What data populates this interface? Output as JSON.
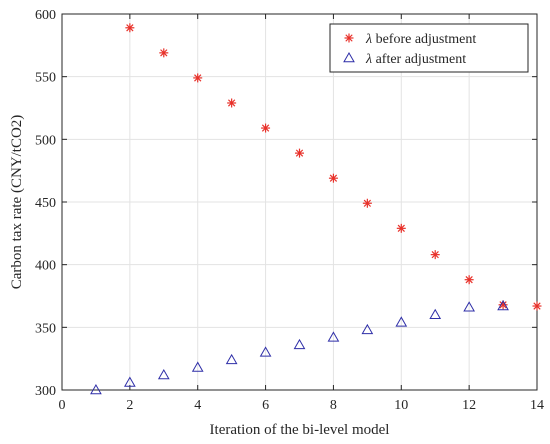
{
  "chart_data": {
    "type": "scatter",
    "title": "",
    "xlabel": "Iteration of the bi-level model",
    "ylabel": "Carbon tax rate (CNY/tCO2)",
    "xlim": [
      0,
      14
    ],
    "ylim": [
      300,
      600
    ],
    "xticks": [
      0,
      2,
      4,
      6,
      8,
      10,
      12,
      14
    ],
    "yticks": [
      300,
      350,
      400,
      450,
      500,
      550,
      600
    ],
    "grid": true,
    "legend_position": "top-right",
    "series": [
      {
        "name_symbol": "λ",
        "name_text": " before adjustment",
        "name": "λ before adjustment",
        "marker": "asterisk",
        "color": "#e8312a",
        "x": [
          2,
          3,
          4,
          5,
          6,
          7,
          8,
          9,
          10,
          11,
          12,
          13,
          14
        ],
        "y": [
          589,
          569,
          549,
          529,
          509,
          489,
          469,
          449,
          429,
          408,
          388,
          368,
          367
        ]
      },
      {
        "name_symbol": "λ",
        "name_text": " after adjustment",
        "name": "λ after adjustment",
        "marker": "triangle",
        "color": "#2f2fa8",
        "x": [
          1,
          2,
          3,
          4,
          5,
          6,
          7,
          8,
          9,
          10,
          11,
          12,
          13
        ],
        "y": [
          300,
          306,
          312,
          318,
          324,
          330,
          336,
          342,
          348,
          354,
          360,
          366,
          367
        ]
      }
    ]
  }
}
